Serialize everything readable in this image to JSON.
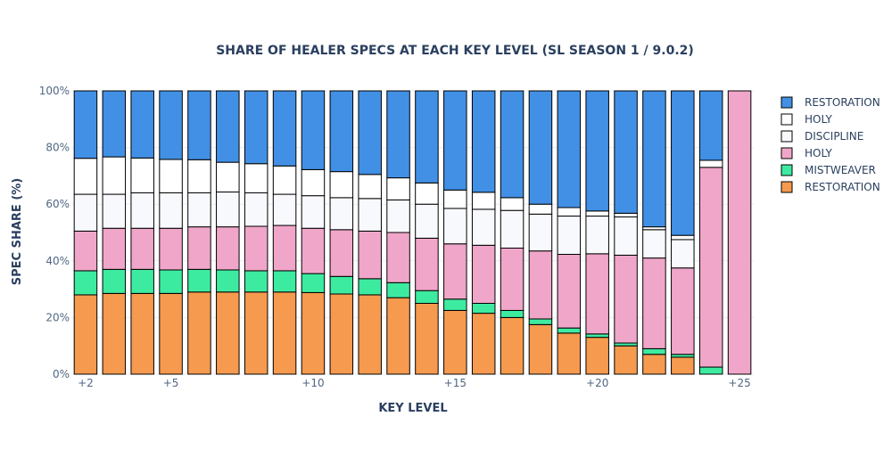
{
  "chart_data": {
    "type": "bar",
    "stacked": true,
    "title": "SHARE OF HEALER SPECS AT EACH KEY LEVEL (SL SEASON 1 / 9.0.2)",
    "xlabel": "KEY LEVEL",
    "ylabel": "SPEC SHARE (%)",
    "ylim": [
      0,
      100
    ],
    "y_tick_values": [
      0,
      20,
      40,
      60,
      80,
      100
    ],
    "y_tick_suffix": "%",
    "x_tick_values": [
      2,
      5,
      10,
      15,
      20,
      25
    ],
    "x_tick_prefix": "+",
    "x": [
      2,
      3,
      4,
      5,
      6,
      7,
      8,
      9,
      10,
      11,
      12,
      13,
      14,
      15,
      16,
      17,
      18,
      19,
      20,
      21,
      22,
      23,
      24,
      25
    ],
    "legend_position": "right",
    "gridlines": true,
    "series": [
      {
        "name": "RESTORATION",
        "color": "#f59a4e",
        "values": [
          28,
          28.5,
          28.5,
          28.5,
          29,
          29,
          29,
          29,
          28.8,
          28.3,
          28,
          27,
          25,
          22.5,
          21.5,
          20,
          17.5,
          14.5,
          13,
          10,
          7,
          6,
          0,
          0
        ]
      },
      {
        "name": "MISTWEAVER",
        "color": "#3deba0",
        "values": [
          8.5,
          8.5,
          8.5,
          8.3,
          8,
          7.8,
          7.5,
          7.5,
          6.7,
          6.2,
          5.7,
          5.3,
          4.5,
          4,
          3.5,
          2.5,
          2,
          1.8,
          1.2,
          1,
          2,
          1,
          2.5,
          0
        ]
      },
      {
        "name": "HOLY",
        "color": "#f0a6c9",
        "values": [
          14,
          14.5,
          14.5,
          14.7,
          15,
          15.2,
          15.7,
          16,
          16,
          16.5,
          16.8,
          17.7,
          18.5,
          19.5,
          20.5,
          22,
          24,
          26,
          28.3,
          31,
          32,
          30.5,
          70.5,
          100
        ]
      },
      {
        "name": "DISCIPLINE",
        "color": "#f8f9fd",
        "values": [
          13,
          12,
          12.5,
          12.5,
          12,
          12.3,
          11.8,
          11,
          11.5,
          11.3,
          11.5,
          11.5,
          12,
          12.5,
          12.7,
          13.3,
          13,
          13.5,
          13.3,
          13.5,
          10,
          10,
          0,
          0
        ]
      },
      {
        "name": "HOLY",
        "color": "#ffffff",
        "values": [
          12.7,
          13.2,
          12.3,
          11.8,
          11.7,
          10.5,
          10.3,
          10,
          9.2,
          9.2,
          8.5,
          7.8,
          7.5,
          6.5,
          6,
          4.5,
          3.5,
          3,
          1.8,
          1.3,
          1,
          1.5,
          2.5,
          0
        ]
      },
      {
        "name": "RESTORATION",
        "color": "#4290e5",
        "values": [
          23.8,
          23.3,
          23.7,
          24.2,
          24.3,
          25.2,
          25.7,
          26.5,
          27.8,
          28.5,
          29.5,
          30.7,
          32.5,
          35,
          35.8,
          37.7,
          40,
          41.2,
          42.4,
          43.2,
          48,
          51,
          24.5,
          0
        ]
      }
    ]
  }
}
